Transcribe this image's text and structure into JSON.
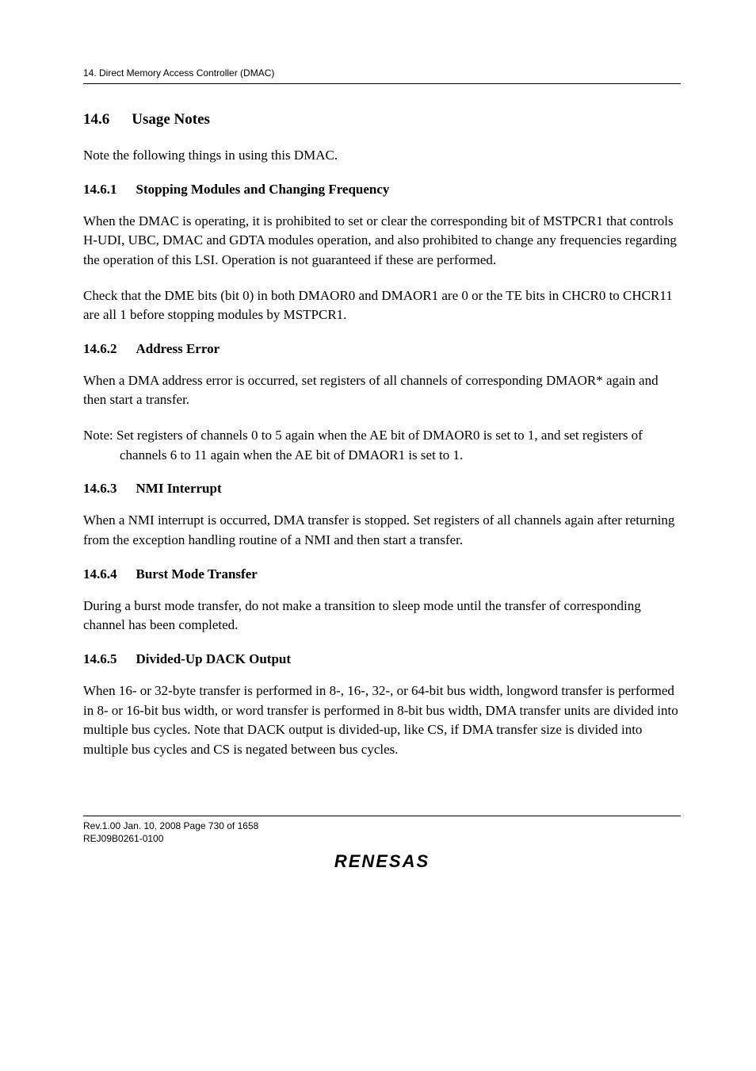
{
  "runningHead": "14.   Direct Memory Access Controller (DMAC)",
  "section": {
    "number": "14.6",
    "title": "Usage Notes",
    "intro": "Note the following things in using this DMAC."
  },
  "subs": [
    {
      "number": "14.6.1",
      "title": "Stopping Modules and Changing Frequency",
      "paras": [
        "When the DMAC is operating, it is prohibited to set or clear the corresponding bit of MSTPCR1 that controls H-UDI, UBC, DMAC and GDTA modules operation, and also prohibited to change any frequencies regarding the operation of this LSI. Operation is not guaranteed if these are performed.",
        "Check that the DME bits (bit 0) in both DMAOR0 and DMAOR1 are 0 or the TE bits in CHCR0 to CHCR11 are all 1 before stopping modules by MSTPCR1."
      ]
    },
    {
      "number": "14.6.2",
      "title": "Address Error",
      "paras": [
        "When a DMA address error is occurred, set registers of all channels of corresponding DMAOR* again and then start a transfer."
      ],
      "note": "Note: Set registers of channels 0 to 5 again when the AE bit of DMAOR0 is set to 1, and set registers of channels 6 to 11 again when the AE bit of DMAOR1 is set to 1."
    },
    {
      "number": "14.6.3",
      "title": "NMI Interrupt",
      "paras": [
        "When a NMI interrupt is occurred, DMA transfer is stopped. Set registers of all channels again after returning from the exception handling routine of a NMI and then start a transfer."
      ]
    },
    {
      "number": "14.6.4",
      "title": "Burst Mode Transfer",
      "paras": [
        "During a burst mode transfer, do not make a transition to sleep mode until the transfer of corresponding channel has been completed."
      ]
    },
    {
      "number": "14.6.5",
      "title": "Divided-Up DACK Output",
      "paras": [
        "When 16- or 32-byte transfer is performed in 8-, 16-, 32-, or 64-bit bus width, longword transfer is performed in 8- or 16-bit bus width, or word transfer is performed in 8-bit bus width, DMA transfer units are divided into multiple bus cycles. Note that DACK output is divided-up, like CS, if DMA transfer size is divided into multiple bus cycles and CS is negated between bus cycles."
      ]
    }
  ],
  "footer": {
    "line1": "Rev.1.00  Jan. 10, 2008  Page 730 of 1658",
    "line2": "REJ09B0261-0100",
    "logo": "RENESAS"
  }
}
